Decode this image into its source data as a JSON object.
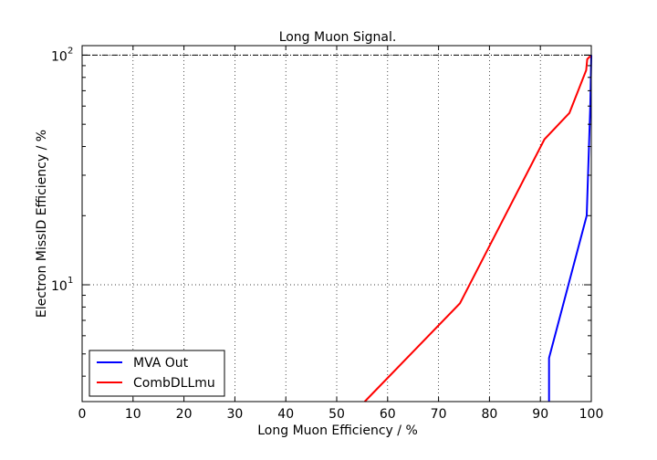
{
  "chart_data": {
    "type": "line",
    "title": "Long Muon Signal.",
    "xlabel": "Long Muon Efficiency / %",
    "ylabel": "Electron MissID Efficiency / %",
    "xlim": [
      0,
      100
    ],
    "ylim": [
      3.1,
      110
    ],
    "yscale": "log",
    "grid": true,
    "legend_position": "lower-left",
    "x_ticks": [
      "0",
      "10",
      "20",
      "30",
      "40",
      "50",
      "60",
      "70",
      "80",
      "90",
      "100"
    ],
    "y_ticks": [
      {
        "value": 10,
        "base": "10",
        "exp": "1"
      },
      {
        "value": 100,
        "base": "10",
        "exp": "2"
      }
    ],
    "reference_line": {
      "y": 100,
      "color": "#000000",
      "style": "dash-dot"
    },
    "series": [
      {
        "name": "MVA Out",
        "color": "#0000ff",
        "x": [
          91.7,
          91.7,
          99.1,
          99.8,
          100
        ],
        "y": [
          3.1,
          4.8,
          20,
          60,
          100
        ]
      },
      {
        "name": "CombDLLmu",
        "color": "#ff0000",
        "x": [
          55.5,
          74.2,
          90.8,
          95.7,
          99.0,
          99.2,
          99.8
        ],
        "y": [
          3.1,
          8.3,
          43,
          56,
          86,
          96,
          99
        ]
      }
    ]
  }
}
